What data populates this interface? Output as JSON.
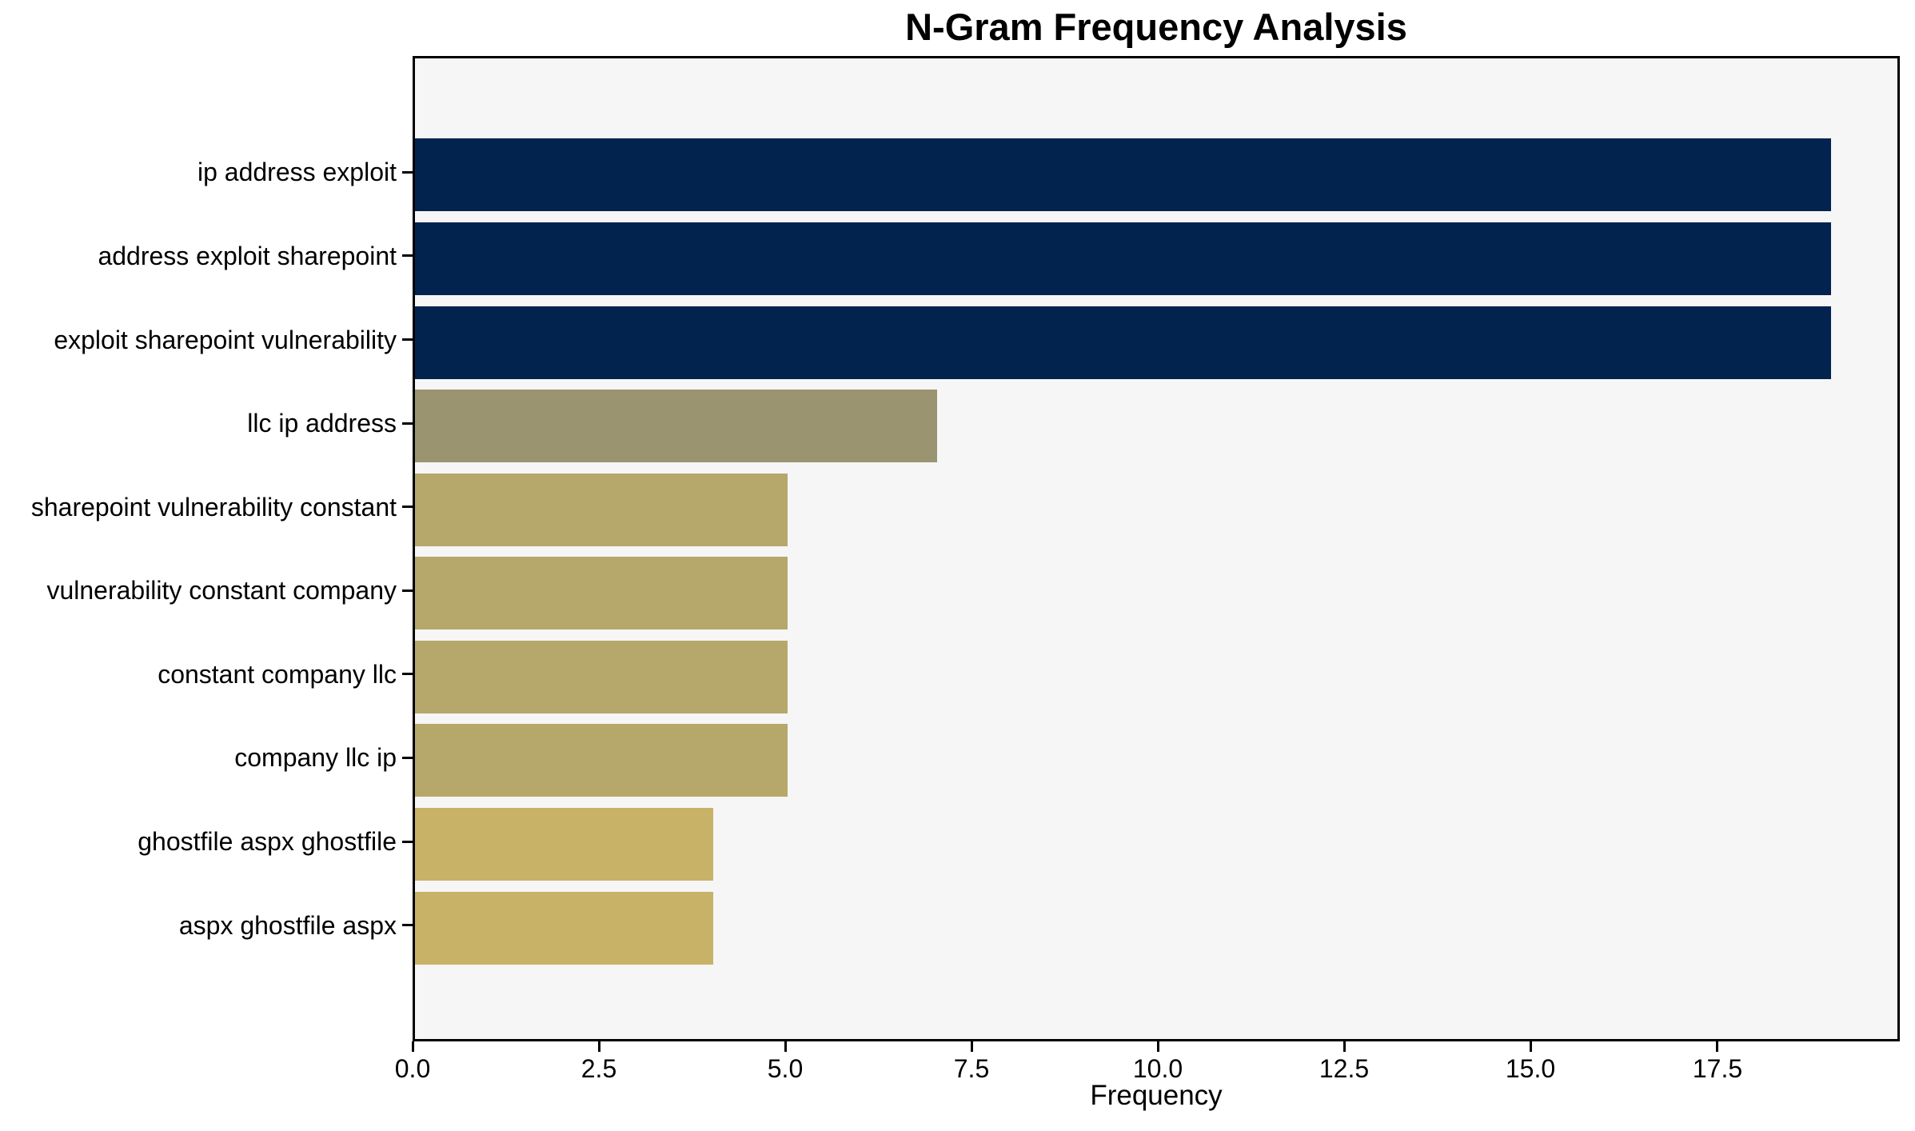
{
  "chart_data": {
    "type": "bar",
    "orientation": "horizontal",
    "title": "N-Gram Frequency Analysis",
    "xlabel": "Frequency",
    "ylabel": "",
    "categories": [
      "ip address exploit",
      "address exploit sharepoint",
      "exploit sharepoint vulnerability",
      "llc ip address",
      "sharepoint vulnerability constant",
      "vulnerability constant company",
      "constant company llc",
      "company llc ip",
      "ghostfile aspx ghostfile",
      "aspx ghostfile aspx"
    ],
    "values": [
      19,
      19,
      19,
      7,
      5,
      5,
      5,
      5,
      4,
      4
    ],
    "bar_colors": [
      "#02234e",
      "#02234e",
      "#02234e",
      "#9a9471",
      "#b6a86a",
      "#b6a86a",
      "#b6a86a",
      "#b6a86a",
      "#c7b267",
      "#c7b267"
    ],
    "xlim": [
      0,
      19.95
    ],
    "x_ticks": [
      0,
      2.5,
      5,
      7.5,
      10,
      12.5,
      15,
      17.5
    ],
    "x_tick_labels": [
      "0.0",
      "2.5",
      "5.0",
      "7.5",
      "10.0",
      "12.5",
      "15.0",
      "17.5"
    ],
    "grid": false,
    "legend": null,
    "colors": {
      "plot_background": "#f6f6f6",
      "figure_background": "#ffffff",
      "spine": "#000000",
      "text": "#000000"
    }
  }
}
